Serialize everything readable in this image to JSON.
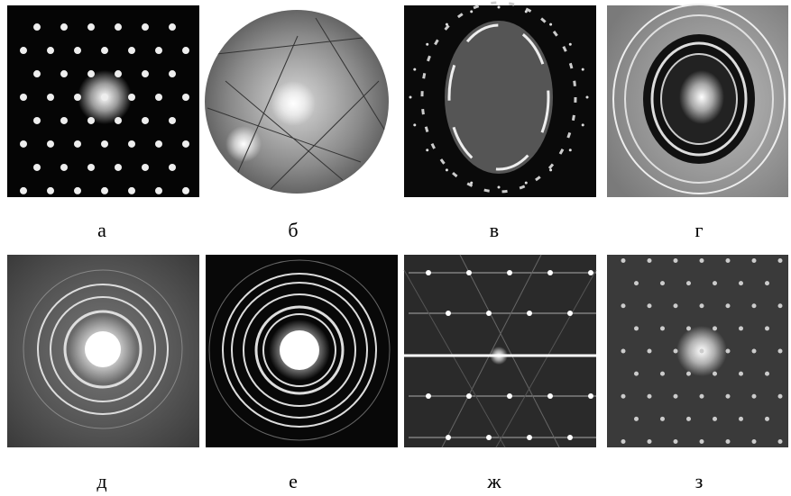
{
  "panels": [
    {
      "label": "а"
    },
    {
      "label": "б"
    },
    {
      "label": "в"
    },
    {
      "label": "г"
    },
    {
      "label": "д"
    },
    {
      "label": "е"
    },
    {
      "label": "ж"
    },
    {
      "label": "з"
    }
  ]
}
